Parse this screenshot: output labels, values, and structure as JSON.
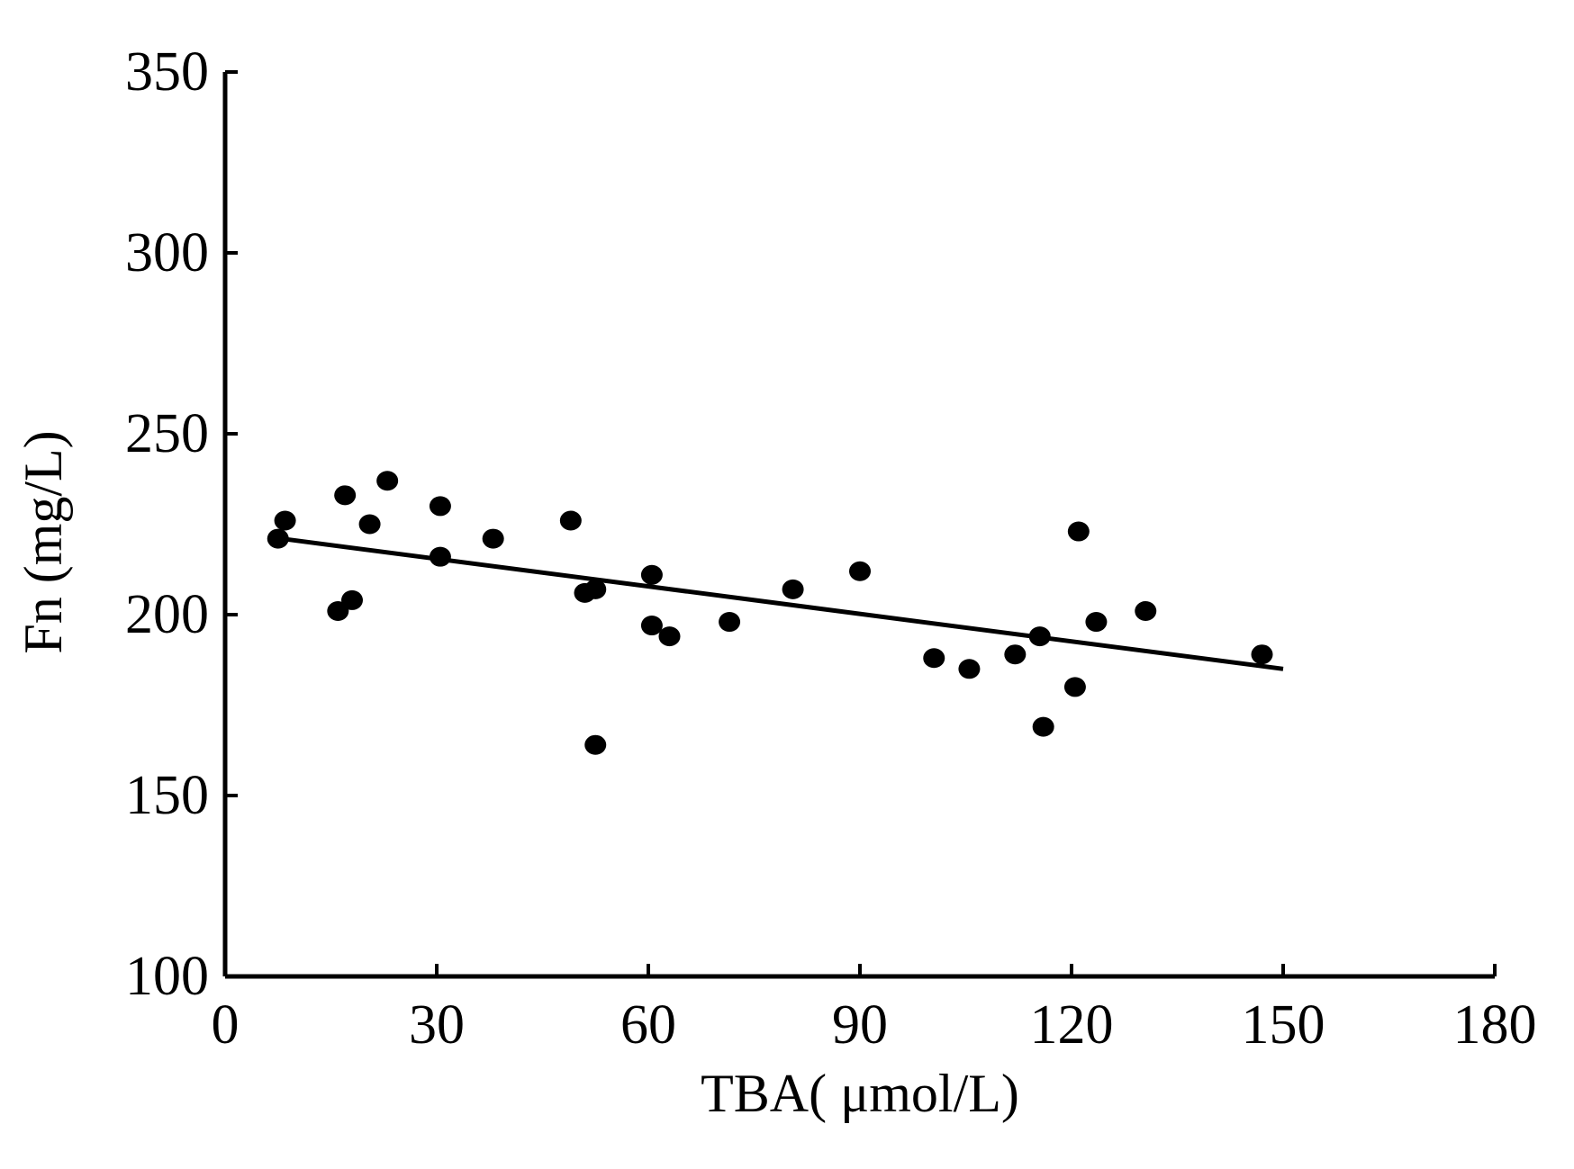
{
  "chart_data": {
    "type": "scatter",
    "title": "",
    "xlabel": "TBA( μmol/L)",
    "ylabel": "Fn (mg/L)",
    "xlim": [
      0,
      180
    ],
    "ylim": [
      100,
      350
    ],
    "xticks": [
      0,
      30,
      60,
      90,
      120,
      150,
      180
    ],
    "yticks": [
      100,
      150,
      200,
      250,
      300,
      350
    ],
    "grid": false,
    "legend": "none",
    "points": [
      {
        "x": 7.5,
        "y": 221
      },
      {
        "x": 8.5,
        "y": 226
      },
      {
        "x": 16,
        "y": 201
      },
      {
        "x": 17,
        "y": 233
      },
      {
        "x": 18,
        "y": 204
      },
      {
        "x": 20.5,
        "y": 225
      },
      {
        "x": 23,
        "y": 237
      },
      {
        "x": 30.5,
        "y": 230
      },
      {
        "x": 30.5,
        "y": 216
      },
      {
        "x": 38,
        "y": 221
      },
      {
        "x": 49,
        "y": 226
      },
      {
        "x": 51,
        "y": 206
      },
      {
        "x": 52.5,
        "y": 207
      },
      {
        "x": 52.5,
        "y": 164
      },
      {
        "x": 60.5,
        "y": 211
      },
      {
        "x": 60.5,
        "y": 197
      },
      {
        "x": 63,
        "y": 194
      },
      {
        "x": 71.5,
        "y": 198
      },
      {
        "x": 80.5,
        "y": 207
      },
      {
        "x": 90,
        "y": 212
      },
      {
        "x": 100.5,
        "y": 188
      },
      {
        "x": 105.5,
        "y": 185
      },
      {
        "x": 112,
        "y": 189
      },
      {
        "x": 115.5,
        "y": 194
      },
      {
        "x": 116,
        "y": 169
      },
      {
        "x": 120.5,
        "y": 180
      },
      {
        "x": 121,
        "y": 223
      },
      {
        "x": 123.5,
        "y": 198
      },
      {
        "x": 130.5,
        "y": 201
      },
      {
        "x": 147,
        "y": 189
      }
    ],
    "trendline": {
      "x": [
        8,
        150
      ],
      "y": [
        221,
        185
      ]
    }
  }
}
